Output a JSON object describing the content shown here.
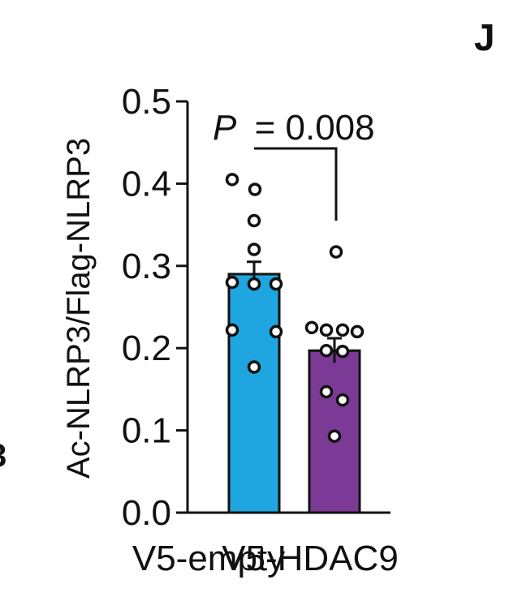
{
  "panel_letter": "J",
  "edge_fragment": "3",
  "colors": {
    "bar_empty": "#1fa6e0",
    "bar_hdac9": "#7b3a96",
    "axis": "#111111",
    "point_fill": "#ffffff"
  },
  "chart_data": {
    "type": "bar",
    "categories": [
      "V5-empty",
      "V5-HDAC9"
    ],
    "values": [
      0.29,
      0.197
    ],
    "errors": [
      0.015,
      0.015
    ],
    "points": [
      [
        0.405,
        0.393,
        0.355,
        0.32,
        0.28,
        0.278,
        0.278,
        0.222,
        0.22,
        0.177
      ],
      [
        0.317,
        0.225,
        0.22,
        0.222,
        0.222,
        0.197,
        0.196,
        0.147,
        0.137,
        0.093
      ]
    ],
    "ylabel": "Ac-NLRP3/Flag-NLRP3",
    "xlabel": "",
    "ylim": [
      0,
      0.5
    ],
    "yticks": [
      "0.0",
      "0.1",
      "0.2",
      "0.3",
      "0.4",
      "0.5"
    ],
    "grid": false,
    "annotation": {
      "p_symbol": "P",
      "p_text": "= 0.008"
    }
  }
}
